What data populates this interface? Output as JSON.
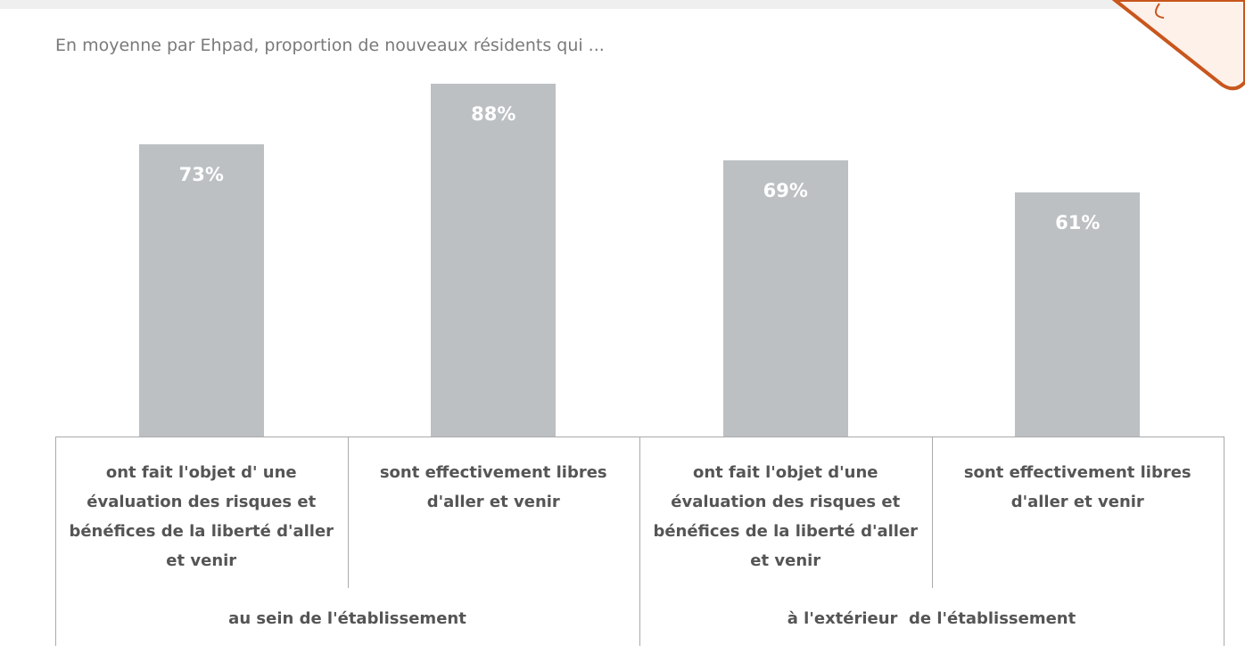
{
  "chart_data": {
    "type": "bar",
    "title": "En moyenne par Ehpad, proportion de nouveaux résidents qui ...",
    "categories": [
      "ont fait l'objet d' une évaluation des risques et bénéfices de la liberté d'aller et venir",
      "sont effectivement libres d'aller et venir",
      "ont fait l'objet d'une évaluation des risques et bénéfices de la liberté d'aller et venir",
      "sont effectivement libres d'aller et venir"
    ],
    "groups": [
      "au sein de l'établissement",
      "à l'extérieur  de l'établissement"
    ],
    "values": [
      73,
      88,
      69,
      61
    ],
    "value_labels": [
      "73%",
      "88%",
      "69%",
      "61%"
    ],
    "color": "#bcc0c3"
  }
}
